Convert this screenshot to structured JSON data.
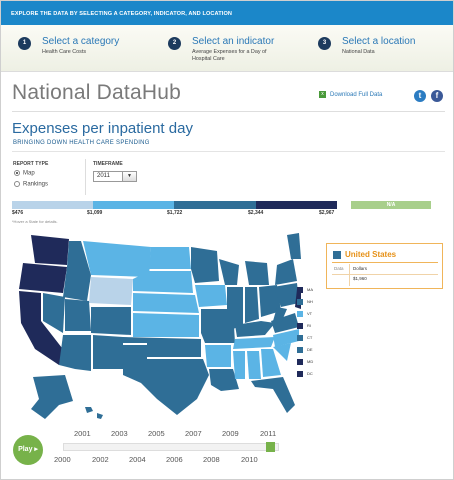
{
  "topbar": {
    "text": "EXPLORE THE DATA BY SELECTING A CATEGORY, INDICATOR, AND LOCATION"
  },
  "steps": [
    {
      "num": "1",
      "title": "Select a category",
      "sub": [
        "Health Care Costs"
      ]
    },
    {
      "num": "2",
      "title": "Select an indicator",
      "sub": [
        "Average Expenses for a Day of",
        "Hospital Care"
      ]
    },
    {
      "num": "3",
      "title": "Select a location",
      "sub": [
        "National Data"
      ]
    }
  ],
  "brand": "National DataHub",
  "download": {
    "icon": "x",
    "label": "Download Full Data"
  },
  "social": {
    "twitter": "t",
    "facebook": "f"
  },
  "page": {
    "title": "Expenses per inpatient day",
    "subtitle": "BRINGING DOWN HEALTH CARE SPENDING"
  },
  "controls": {
    "report_type_label": "REPORT TYPE",
    "options": [
      "Map",
      "Rankings"
    ],
    "selected_option": "Map",
    "timeframe_label": "TIMEFRAME",
    "timeframe_value": "2011",
    "timeframe_arrow": "▼"
  },
  "legend": {
    "ticks": [
      "$476",
      "$1,099",
      "$1,722",
      "$2,344",
      "$2,967"
    ],
    "colors": [
      "#b9d3e9",
      "#5bb4e5",
      "#2f6e96",
      "#1f2a5a"
    ],
    "na_label": "N/A",
    "na_color": "#a8cf8b",
    "hint": "*Hover a State for details."
  },
  "info_box": {
    "name": "United States",
    "col_label": "Data",
    "unit": "Dollars",
    "value": "$1,960",
    "color": "#2f6e96",
    "border": "#f0b55a"
  },
  "small_states": [
    {
      "code": "MA",
      "color": "#1f2a5a"
    },
    {
      "code": "NH",
      "color": "#2f6e96"
    },
    {
      "code": "VT",
      "color": "#5bb4e5"
    },
    {
      "code": "RI",
      "color": "#1f2a5a"
    },
    {
      "code": "CT",
      "color": "#2f6e96"
    },
    {
      "code": "DE",
      "color": "#2f6e96"
    },
    {
      "code": "MD",
      "color": "#1f2a5a"
    },
    {
      "code": "DC",
      "color": "#1f2a5a"
    }
  ],
  "timeline": {
    "play_label": "Play ▸",
    "years_top": [
      "2001",
      "2003",
      "2005",
      "2007",
      "2009",
      "2011"
    ],
    "years_bottom": [
      "2000",
      "2002",
      "2004",
      "2006",
      "2008",
      "2010"
    ],
    "selected": "2011"
  }
}
